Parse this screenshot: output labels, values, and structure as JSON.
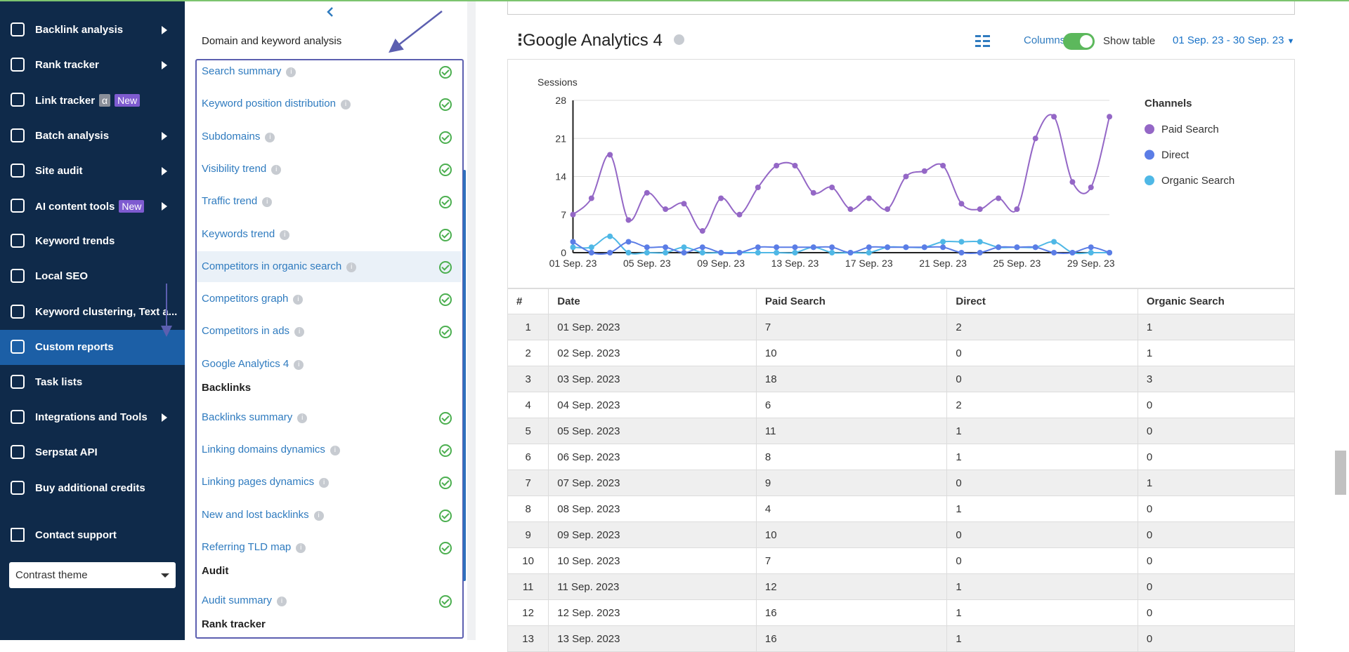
{
  "sidebar": {
    "items": [
      {
        "label": "Backlink analysis",
        "submenu": true
      },
      {
        "label": "Rank tracker",
        "submenu": true
      },
      {
        "label": "Link tracker",
        "badges": [
          "α",
          "New"
        ]
      },
      {
        "label": "Batch analysis",
        "submenu": true
      },
      {
        "label": "Site audit",
        "submenu": true
      },
      {
        "label": "AI content tools",
        "badges": [
          "New"
        ],
        "submenu": true
      },
      {
        "label": "Keyword trends"
      },
      {
        "label": "Local SEO"
      },
      {
        "label": "Keyword clustering, Text a..."
      },
      {
        "label": "Custom reports",
        "active": true
      },
      {
        "label": "Task lists"
      },
      {
        "label": "Integrations and Tools",
        "submenu": true
      },
      {
        "label": "Serpstat API"
      },
      {
        "label": "Buy additional credits"
      }
    ],
    "contact_support": "Contact support",
    "theme_select": "Contrast theme"
  },
  "report_panel": {
    "sections": [
      {
        "title": "Domain and keyword analysis",
        "items": [
          {
            "label": "Search summary",
            "checked": true
          },
          {
            "label": "Keyword position distribution",
            "checked": true
          },
          {
            "label": "Subdomains",
            "checked": true
          },
          {
            "label": "Visibility trend",
            "checked": true
          },
          {
            "label": "Traffic trend",
            "checked": true
          },
          {
            "label": "Keywords trend",
            "checked": true
          },
          {
            "label": "Competitors in organic search",
            "checked": true,
            "selected": true
          },
          {
            "label": "Competitors graph",
            "checked": true
          },
          {
            "label": "Competitors in ads",
            "checked": true
          },
          {
            "label": "Google Analytics 4",
            "checked": false
          }
        ]
      },
      {
        "title": "Backlinks",
        "items": [
          {
            "label": "Backlinks summary",
            "checked": true
          },
          {
            "label": "Linking domains dynamics",
            "checked": true
          },
          {
            "label": "Linking pages dynamics",
            "checked": true
          },
          {
            "label": "New and lost backlinks",
            "checked": true
          },
          {
            "label": "Referring TLD map",
            "checked": true
          }
        ]
      },
      {
        "title": "Audit",
        "items": [
          {
            "label": "Audit summary",
            "checked": true
          }
        ]
      },
      {
        "title": "Rank tracker",
        "items": []
      }
    ]
  },
  "widget": {
    "title": "Google Analytics 4",
    "columns_button": "Columns",
    "show_table_label": "Show table",
    "show_table": true,
    "date_range": "01 Sep. 23 - 30 Sep. 23"
  },
  "chart_data": {
    "type": "line",
    "y_label": "Sessions",
    "legend_title": "Channels",
    "categories": [
      "01 Sep. 23",
      null,
      null,
      null,
      "05 Sep. 23",
      null,
      null,
      null,
      "09 Sep. 23",
      null,
      null,
      null,
      "13 Sep. 23",
      null,
      null,
      null,
      "17 Sep. 23",
      null,
      null,
      null,
      "21 Sep. 23",
      null,
      null,
      null,
      "25 Sep. 23",
      null,
      null,
      null,
      "29 Sep. 23",
      null
    ],
    "series": [
      {
        "name": "Paid Search",
        "color": "#9467c6",
        "values": [
          7,
          10,
          18,
          6,
          11,
          8,
          9,
          4,
          10,
          7,
          12,
          16,
          16,
          11,
          12,
          8,
          10,
          8,
          14,
          15,
          16,
          9,
          8,
          10,
          8,
          21,
          25,
          13,
          12,
          25
        ]
      },
      {
        "name": "Direct",
        "color": "#5b7de6",
        "values": [
          2,
          0,
          0,
          2,
          1,
          1,
          0,
          1,
          0,
          0,
          1,
          1,
          1,
          1,
          1,
          0,
          1,
          1,
          1,
          1,
          1,
          0,
          0,
          1,
          1,
          1,
          0,
          0,
          1,
          0
        ]
      },
      {
        "name": "Organic Search",
        "color": "#4fb8e6",
        "values": [
          1,
          1,
          3,
          0,
          0,
          0,
          1,
          0,
          0,
          0,
          0,
          0,
          0,
          1,
          0,
          0,
          0,
          1,
          1,
          1,
          2,
          2,
          2,
          1,
          1,
          1,
          2,
          0,
          0,
          0
        ]
      }
    ],
    "ylim": [
      0,
      28
    ],
    "yticks": [
      0,
      7,
      14,
      21,
      28
    ],
    "grid": true
  },
  "table": {
    "columns": [
      "#",
      "Date",
      "Paid Search",
      "Direct",
      "Organic Search"
    ],
    "rows": [
      [
        1,
        "01 Sep. 2023",
        7,
        2,
        1
      ],
      [
        2,
        "02 Sep. 2023",
        10,
        0,
        1
      ],
      [
        3,
        "03 Sep. 2023",
        18,
        0,
        3
      ],
      [
        4,
        "04 Sep. 2023",
        6,
        2,
        0
      ],
      [
        5,
        "05 Sep. 2023",
        11,
        1,
        0
      ],
      [
        6,
        "06 Sep. 2023",
        8,
        1,
        0
      ],
      [
        7,
        "07 Sep. 2023",
        9,
        0,
        1
      ],
      [
        8,
        "08 Sep. 2023",
        4,
        1,
        0
      ],
      [
        9,
        "09 Sep. 2023",
        10,
        0,
        0
      ],
      [
        10,
        "10 Sep. 2023",
        7,
        0,
        0
      ],
      [
        11,
        "11 Sep. 2023",
        12,
        1,
        0
      ],
      [
        12,
        "12 Sep. 2023",
        16,
        1,
        0
      ],
      [
        13,
        "13 Sep. 2023",
        16,
        1,
        0
      ]
    ]
  }
}
